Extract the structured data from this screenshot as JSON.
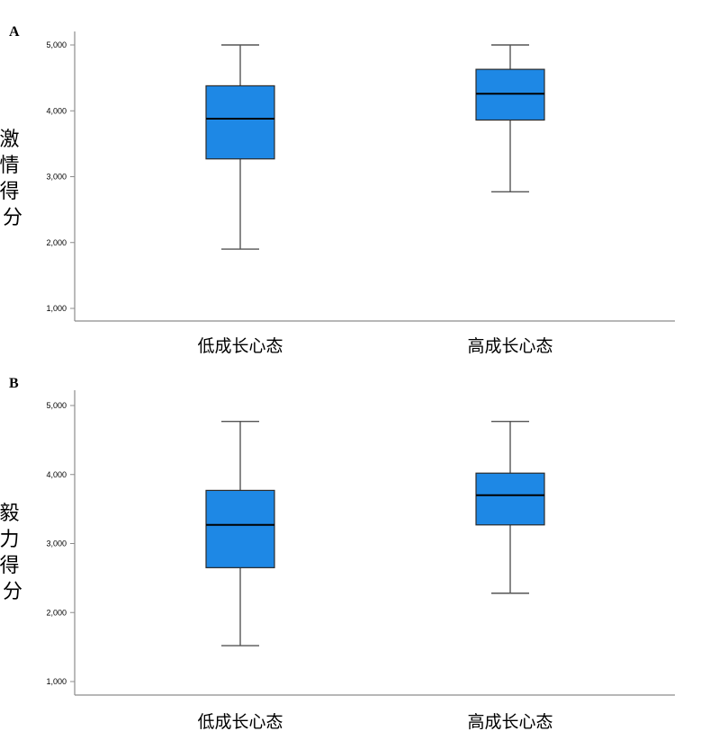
{
  "chart_data": [
    {
      "type": "box",
      "panel": "A",
      "ylabel": "激情得分",
      "yticks": [
        "1,000",
        "2,000",
        "3,000",
        "4,000",
        "5,000"
      ],
      "ylim": [
        1.0,
        5.0
      ],
      "categories": [
        "低成长心态",
        "高成长心态"
      ],
      "box_color": "#1e88e5",
      "boxes": [
        {
          "category": "低成长心态",
          "min": 1.9,
          "q1": 3.27,
          "median": 3.88,
          "q3": 4.38,
          "max": 5.0
        },
        {
          "category": "高成长心态",
          "min": 2.77,
          "q1": 3.86,
          "median": 4.26,
          "q3": 4.63,
          "max": 5.0
        }
      ]
    },
    {
      "type": "box",
      "panel": "B",
      "ylabel": "毅力得分",
      "yticks": [
        "1,000",
        "2,000",
        "3,000",
        "4,000",
        "5,000"
      ],
      "ylim": [
        1.0,
        5.0
      ],
      "categories": [
        "低成长心态",
        "高成长心态"
      ],
      "box_color": "#1e88e5",
      "boxes": [
        {
          "category": "低成长心态",
          "min": 1.52,
          "q1": 2.65,
          "median": 3.27,
          "q3": 3.77,
          "max": 4.77
        },
        {
          "category": "高成长心态",
          "min": 2.28,
          "q1": 3.27,
          "median": 3.7,
          "q3": 4.02,
          "max": 4.77
        }
      ]
    }
  ]
}
